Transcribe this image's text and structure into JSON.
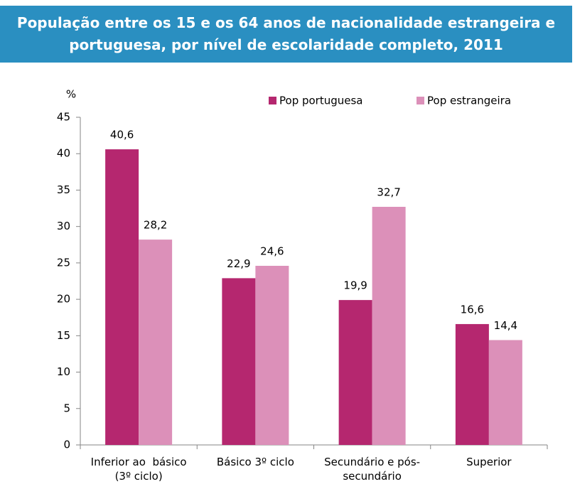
{
  "chart_data": {
    "type": "bar",
    "title": "População entre os 15 e os 64 anos de nacionalidade estrangeira e portuguesa, por nível de escolaridade completo, 2011",
    "y_label": "%",
    "categories": [
      "Inferior ao  básico (3º ciclo)",
      "Básico 3º ciclo",
      "Secundário e pós-secundário",
      "Superior"
    ],
    "series": [
      {
        "name": "Pop portuguesa",
        "color": "#b5276f",
        "values": [
          40.6,
          22.9,
          19.9,
          16.6
        ],
        "value_labels": [
          "40,6",
          "22,9",
          "19,9",
          "16,6"
        ]
      },
      {
        "name": "Pop estrangeira",
        "color": "#dc90b9",
        "values": [
          28.2,
          24.6,
          32.7,
          14.4
        ],
        "value_labels": [
          "28,2",
          "24,6",
          "32,7",
          "14,4"
        ]
      }
    ],
    "ylim": [
      0,
      45
    ],
    "yticks": [
      0,
      5,
      10,
      15,
      20,
      25,
      30,
      35,
      40,
      45
    ],
    "grid": false,
    "legend": "top-right"
  }
}
